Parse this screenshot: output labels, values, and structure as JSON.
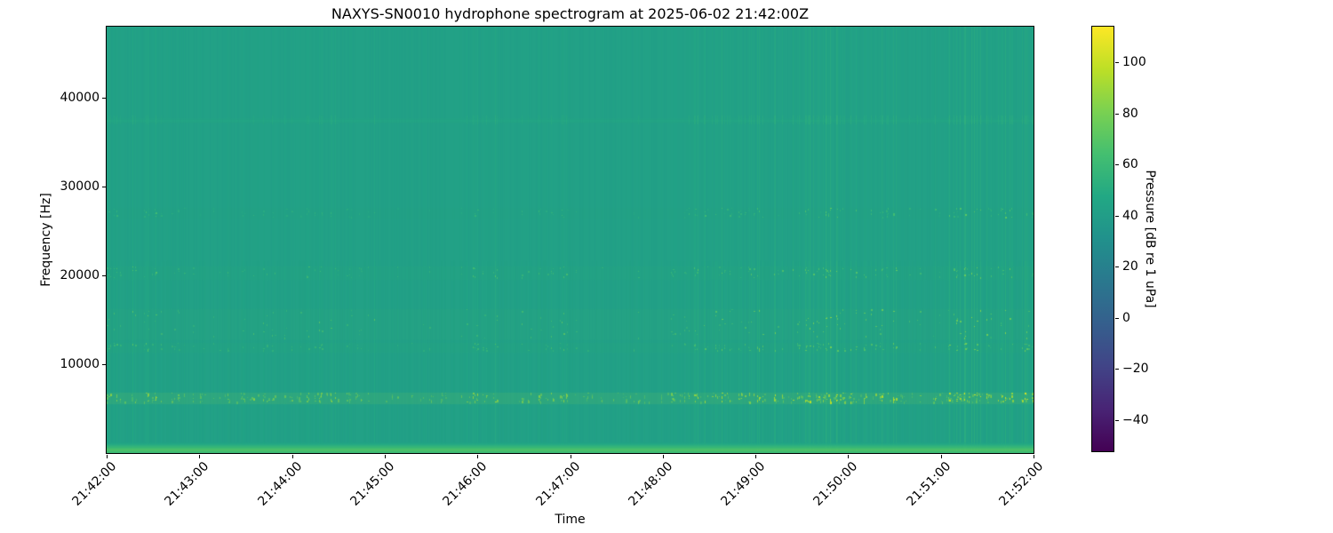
{
  "figure": {
    "title": "NAXYS-SN0010 hydrophone spectrogram at 2025-06-02 21:42:00Z"
  },
  "chart_data": {
    "type": "heatmap",
    "subtype": "hydrophone-spectrogram",
    "title": "NAXYS-SN0010 hydrophone spectrogram at 2025-06-02 21:42:00Z",
    "xlabel": "Time",
    "ylabel": "Frequency [Hz]",
    "x_ticks": [
      "21:42:00",
      "21:43:00",
      "21:44:00",
      "21:45:00",
      "21:46:00",
      "21:47:00",
      "21:48:00",
      "21:49:00",
      "21:50:00",
      "21:51:00",
      "21:52:00"
    ],
    "x_tick_rotation_deg": 45,
    "y_ticks": [
      10000,
      20000,
      30000,
      40000
    ],
    "ylim": [
      0,
      48000
    ],
    "grid": false,
    "colormap": "viridis",
    "colorbar": {
      "label": "Pressure [dB re 1 uPa]",
      "ticks": [
        100,
        80,
        60,
        40,
        20,
        0,
        -20,
        -40
      ],
      "vmin": -53,
      "vmax": 114,
      "position": "right"
    },
    "background_level_db": 42,
    "bands": [
      {
        "name": "low-frequency-energy",
        "f_low": 0,
        "f_high": 1300,
        "level_db": 66,
        "style": "continuous"
      },
      {
        "name": "tonal-band-6khz",
        "f_low": 5500,
        "f_high": 6800,
        "level_db": 80,
        "style": "dashed"
      },
      {
        "name": "band-11-12khz",
        "f_low": 11300,
        "f_high": 12400,
        "level_db": 58,
        "style": "speckled"
      },
      {
        "name": "band-13-16khz",
        "f_low": 12700,
        "f_high": 16200,
        "level_db": 63,
        "style": "speckled"
      },
      {
        "name": "band-20khz",
        "f_low": 19500,
        "f_high": 21000,
        "level_db": 58,
        "style": "speckled"
      },
      {
        "name": "band-27khz",
        "f_low": 26300,
        "f_high": 27600,
        "level_db": 52,
        "style": "speckled"
      },
      {
        "name": "line-38khz",
        "f_low": 37000,
        "f_high": 38000,
        "level_db": 50,
        "style": "faint-line"
      }
    ],
    "texture": "dense broadband vertical click striations throughout the record"
  }
}
